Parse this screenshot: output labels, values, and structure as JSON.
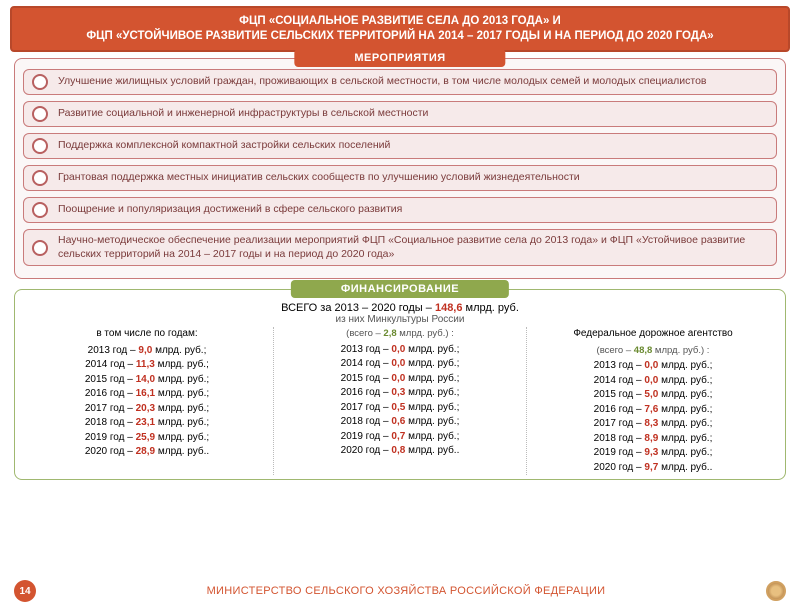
{
  "header": {
    "line1": "ФЦП «СОЦИАЛЬНОЕ РАЗВИТИЕ СЕЛА ДО 2013 ГОДА» И",
    "line2": "ФЦП «УСТОЙЧИВОЕ РАЗВИТИЕ СЕЛЬСКИХ ТЕРРИТОРИЙ НА 2014 – 2017 ГОДЫ  И НА ПЕРИОД ДО 2020 ГОДА»"
  },
  "events": {
    "title": "МЕРОПРИЯТИЯ",
    "items": [
      "Улучшение жилищных условий граждан, проживающих в сельской местности, в том числе молодых семей и молодых специалистов",
      "Развитие социальной и инженерной инфраструктуры в сельской местности",
      "Поддержка комплексной компактной застройки сельских поселений",
      "Грантовая поддержка местных инициатив сельских сообществ по улучшению условий  жизнедеятельности",
      "Поощрение и популяризация достижений в сфере сельского развития",
      "Научно-методическое обеспечение реализации мероприятий ФЦП «Социальное развитие села до 2013 года» и ФЦП «Устойчивое развитие сельских территорий на 2014 – 2017 годы  и на период до 2020 года»"
    ]
  },
  "finance": {
    "title": "ФИНАНСИРОВАНИЕ",
    "total_prefix": "ВСЕГО за 2013 – 2020 годы – ",
    "total_value": "148,6",
    "total_suffix": " млрд. руб.",
    "sub": "из них Минкультуры России",
    "col1": {
      "head": "в том числе по годам:",
      "rows": [
        {
          "y": "2013",
          "v": "9,0"
        },
        {
          "y": "2014",
          "v": "11,3"
        },
        {
          "y": "2015",
          "v": "14,0"
        },
        {
          "y": "2016",
          "v": "16,1"
        },
        {
          "y": "2017",
          "v": "20,3"
        },
        {
          "y": "2018",
          "v": "23,1"
        },
        {
          "y": "2019",
          "v": "25,9"
        },
        {
          "y": "2020",
          "v": "28,9"
        }
      ]
    },
    "col2": {
      "sub_prefix": "(всего – ",
      "sub_val": "2,8",
      "sub_suffix": " млрд. руб.) :",
      "rows": [
        {
          "y": "2013",
          "v": "0,0"
        },
        {
          "y": "2014",
          "v": "0,0"
        },
        {
          "y": "2015",
          "v": "0,0"
        },
        {
          "y": "2016",
          "v": "0,3"
        },
        {
          "y": "2017",
          "v": "0,5"
        },
        {
          "y": "2018",
          "v": "0,6"
        },
        {
          "y": "2019",
          "v": "0,7"
        },
        {
          "y": "2020",
          "v": "0,8"
        }
      ]
    },
    "col3": {
      "head": "Федеральное дорожное агентство",
      "sub_prefix": "(всего – ",
      "sub_val": "48,8",
      "sub_suffix": " млрд. руб.) :",
      "rows": [
        {
          "y": "2013",
          "v": "0,0"
        },
        {
          "y": "2014",
          "v": "0,0"
        },
        {
          "y": "2015",
          "v": "5,0"
        },
        {
          "y": "2016",
          "v": "7,6"
        },
        {
          "y": "2017",
          "v": "8,3"
        },
        {
          "y": "2018",
          "v": "8,9"
        },
        {
          "y": "2019",
          "v": "9,3"
        },
        {
          "y": "2020",
          "v": "9,7"
        }
      ]
    },
    "unit": " млрд. руб."
  },
  "footer": {
    "page": "14",
    "text": "МИНИСТЕРСТВО СЕЛЬСКОГО ХОЗЯЙСТВА РОССИЙСКОЙ ФЕДЕРАЦИИ"
  }
}
